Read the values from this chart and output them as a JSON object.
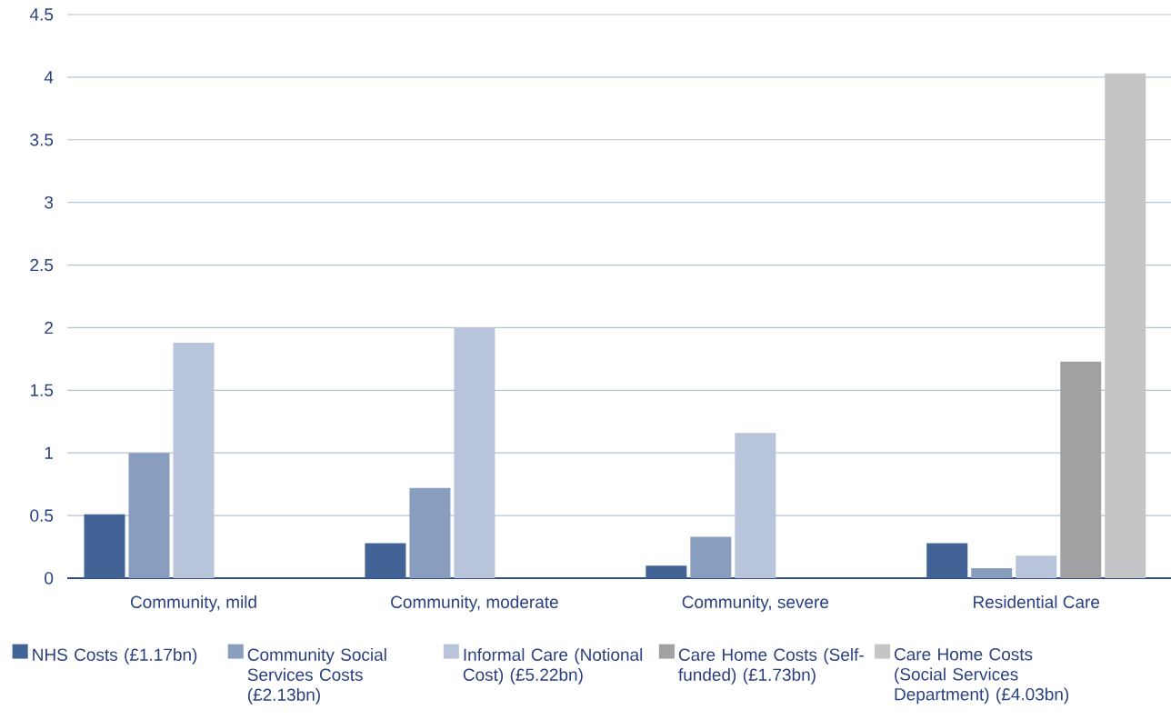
{
  "chart_data": {
    "type": "bar",
    "categories": [
      "Community, mild",
      "Community, moderate",
      "Community, severe",
      "Residential Care"
    ],
    "series": [
      {
        "name": "NHS Costs (£1.17bn)",
        "color": "#416396",
        "values": [
          0.51,
          0.28,
          0.1,
          0.28
        ]
      },
      {
        "name": "Community Social Services Costs (£2.13bn)",
        "color": "#899dbe",
        "values": [
          1.0,
          0.72,
          0.33,
          0.08
        ]
      },
      {
        "name": "Informal Care (Notional Cost) (£5.22bn)",
        "color": "#b8c4d9",
        "values": [
          1.88,
          2.0,
          1.16,
          0.18
        ]
      },
      {
        "name": "Care Home Costs (Self-funded) (£1.73bn)",
        "color": "#a1a1a3",
        "values": [
          null,
          null,
          null,
          1.73
        ]
      },
      {
        "name": "Care Home Costs (Social Services Department) (£4.03bn)",
        "color": "#c4c5c7",
        "values": [
          null,
          null,
          null,
          4.03
        ]
      }
    ],
    "ylim": [
      0,
      4.5
    ],
    "yticks": [
      0,
      0.5,
      1,
      1.5,
      2,
      2.5,
      3,
      3.5,
      4,
      4.5
    ],
    "grid": "y",
    "legend": "bottom"
  }
}
